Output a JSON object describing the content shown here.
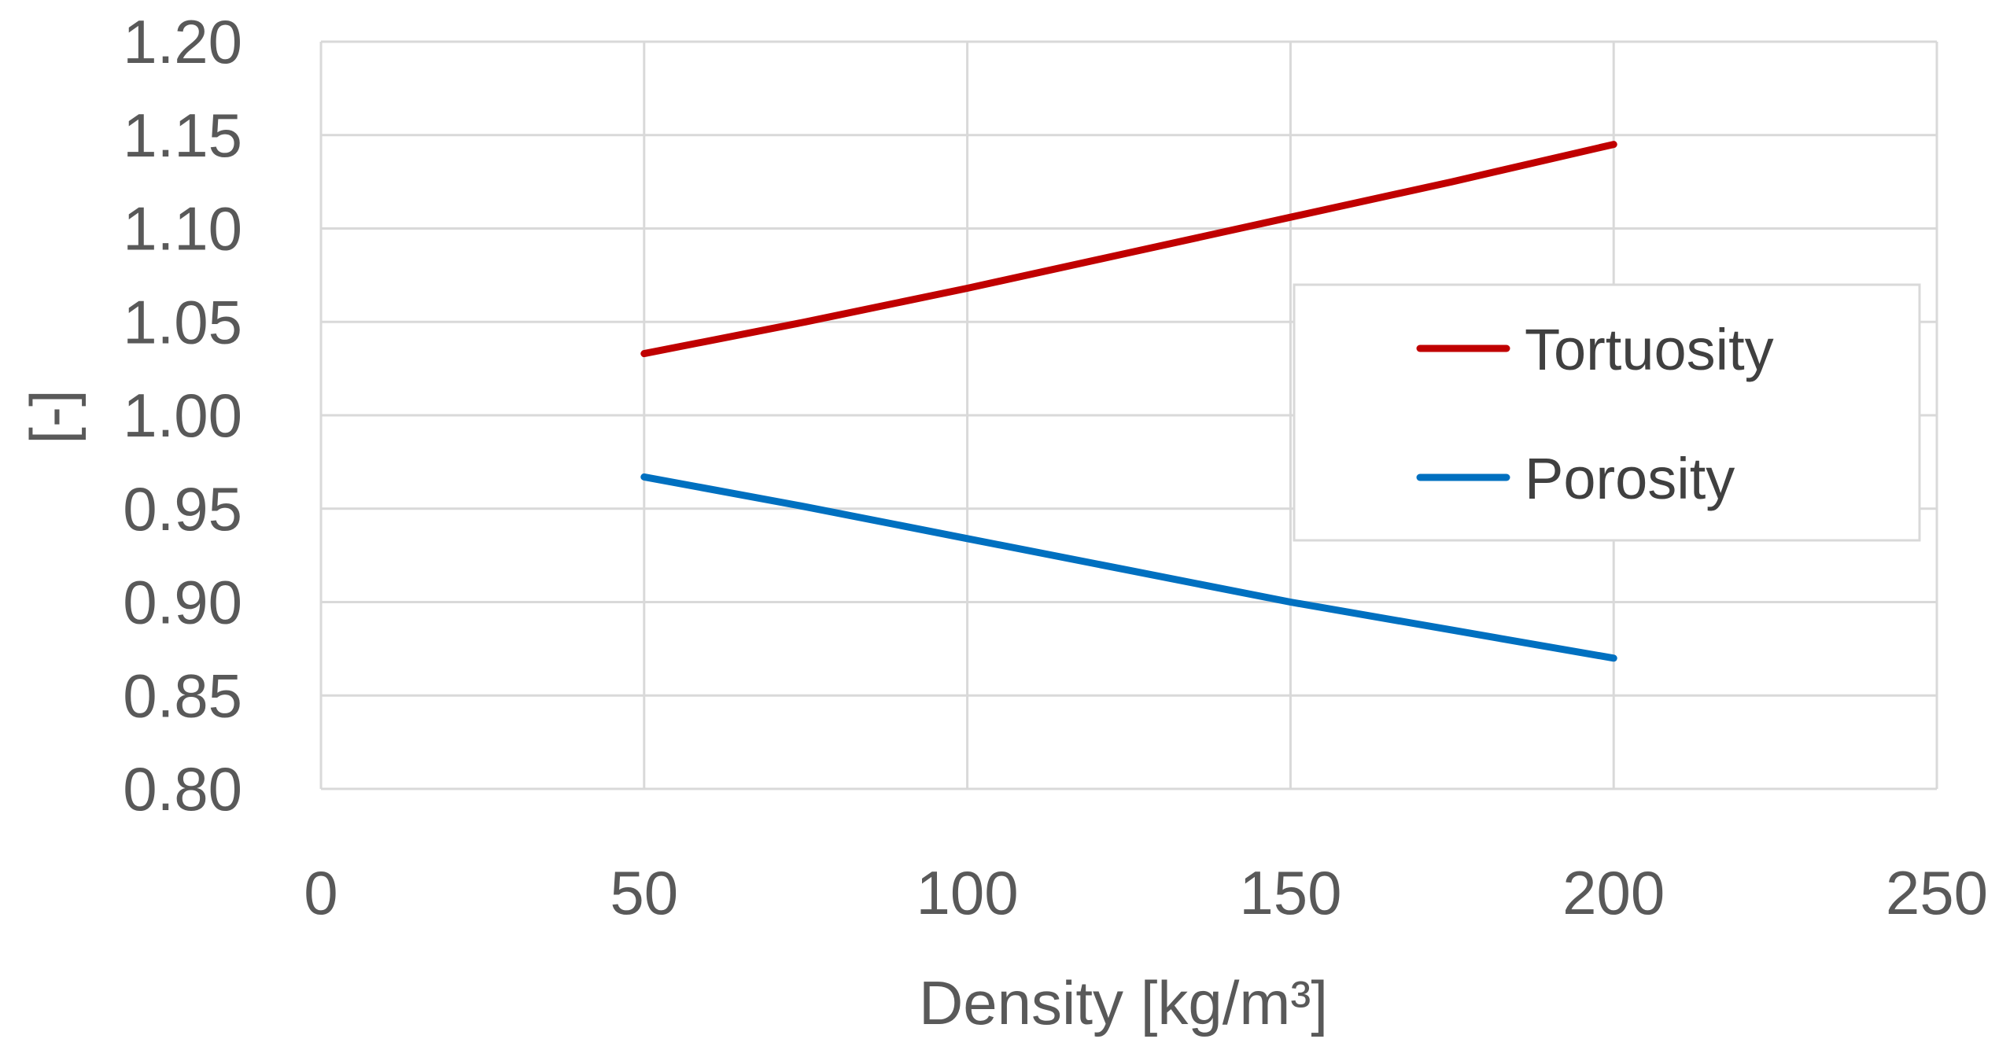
{
  "chart_data": {
    "type": "line",
    "title": "",
    "xlabel": "Density [kg/m³]",
    "ylabel": "[-]",
    "xlim": [
      0,
      250
    ],
    "ylim": [
      0.8,
      1.2
    ],
    "x_ticks": [
      0,
      50,
      100,
      150,
      200,
      250
    ],
    "x_tick_labels": [
      "0",
      "50",
      "100",
      "150",
      "200",
      "250"
    ],
    "y_ticks": [
      0.8,
      0.85,
      0.9,
      0.95,
      1.0,
      1.05,
      1.1,
      1.15,
      1.2
    ],
    "y_tick_labels": [
      "0.80",
      "0.85",
      "0.90",
      "0.95",
      "1.00",
      "1.05",
      "1.10",
      "1.15",
      "1.20"
    ],
    "grid": true,
    "legend_position": "right",
    "series": [
      {
        "name": "Tortuosity",
        "color": "#c00000",
        "x": [
          50,
          75,
          100,
          125,
          150,
          175,
          200
        ],
        "y": [
          1.033,
          1.05,
          1.068,
          1.087,
          1.106,
          1.125,
          1.145
        ]
      },
      {
        "name": "Porosity",
        "color": "#0070c0",
        "x": [
          50,
          75,
          100,
          125,
          150,
          175,
          200
        ],
        "y": [
          0.967,
          0.951,
          0.934,
          0.917,
          0.9,
          0.885,
          0.87
        ]
      }
    ]
  }
}
